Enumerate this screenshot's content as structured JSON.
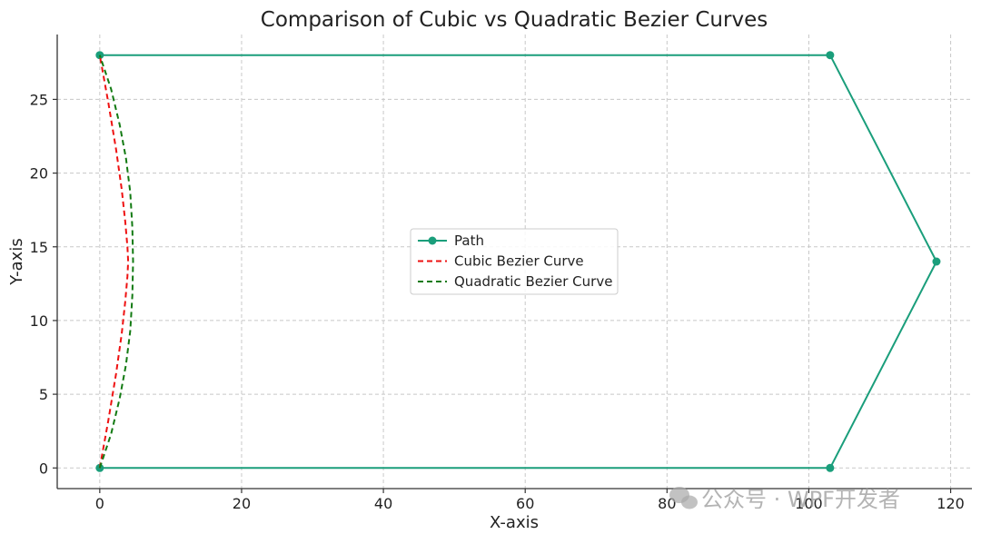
{
  "chart_data": {
    "type": "line",
    "title": "Comparison of Cubic vs Quadratic Bezier Curves",
    "xlabel": "X-axis",
    "ylabel": "Y-axis",
    "xlim": [
      -6,
      123
    ],
    "ylim": [
      -1.4,
      29.4
    ],
    "xticks": [
      0,
      20,
      40,
      60,
      80,
      100,
      120
    ],
    "yticks": [
      0,
      5,
      10,
      15,
      20,
      25
    ],
    "grid": true,
    "legend_position": "center",
    "series": [
      {
        "name": "Path",
        "style": "solid",
        "marker": "circle",
        "color": "#1a9e7b",
        "x": [
          0,
          103,
          118,
          103,
          0
        ],
        "y": [
          0,
          0,
          14,
          28,
          28
        ]
      },
      {
        "name": "Cubic Bezier Curve",
        "style": "dashed",
        "color": "#ee1111",
        "x": [
          0.0,
          1.2,
          2.3,
          3.1,
          3.6,
          3.9,
          4.0,
          3.9,
          3.6,
          3.1,
          2.3,
          1.2,
          0.0
        ],
        "y": [
          0.0,
          3.2,
          6.4,
          9.1,
          11.3,
          13.0,
          14.0,
          15.0,
          16.7,
          18.9,
          21.6,
          24.8,
          28.0
        ]
      },
      {
        "name": "Quadratic Bezier Curve",
        "style": "dashed",
        "color": "#127a12",
        "x": [
          0.0,
          1.6,
          2.8,
          3.7,
          4.3,
          4.6,
          4.7,
          4.6,
          4.3,
          3.7,
          2.8,
          1.6,
          0.0
        ],
        "y": [
          0.0,
          2.3,
          4.7,
          7.0,
          9.3,
          11.7,
          14.0,
          16.3,
          18.7,
          21.0,
          23.3,
          25.7,
          28.0
        ]
      }
    ]
  },
  "watermark": {
    "icon": "wechat-icon",
    "text": "公众号 · WPF开发者"
  },
  "colors": {
    "grid": "#c8c8c8",
    "axis": "#333333"
  }
}
